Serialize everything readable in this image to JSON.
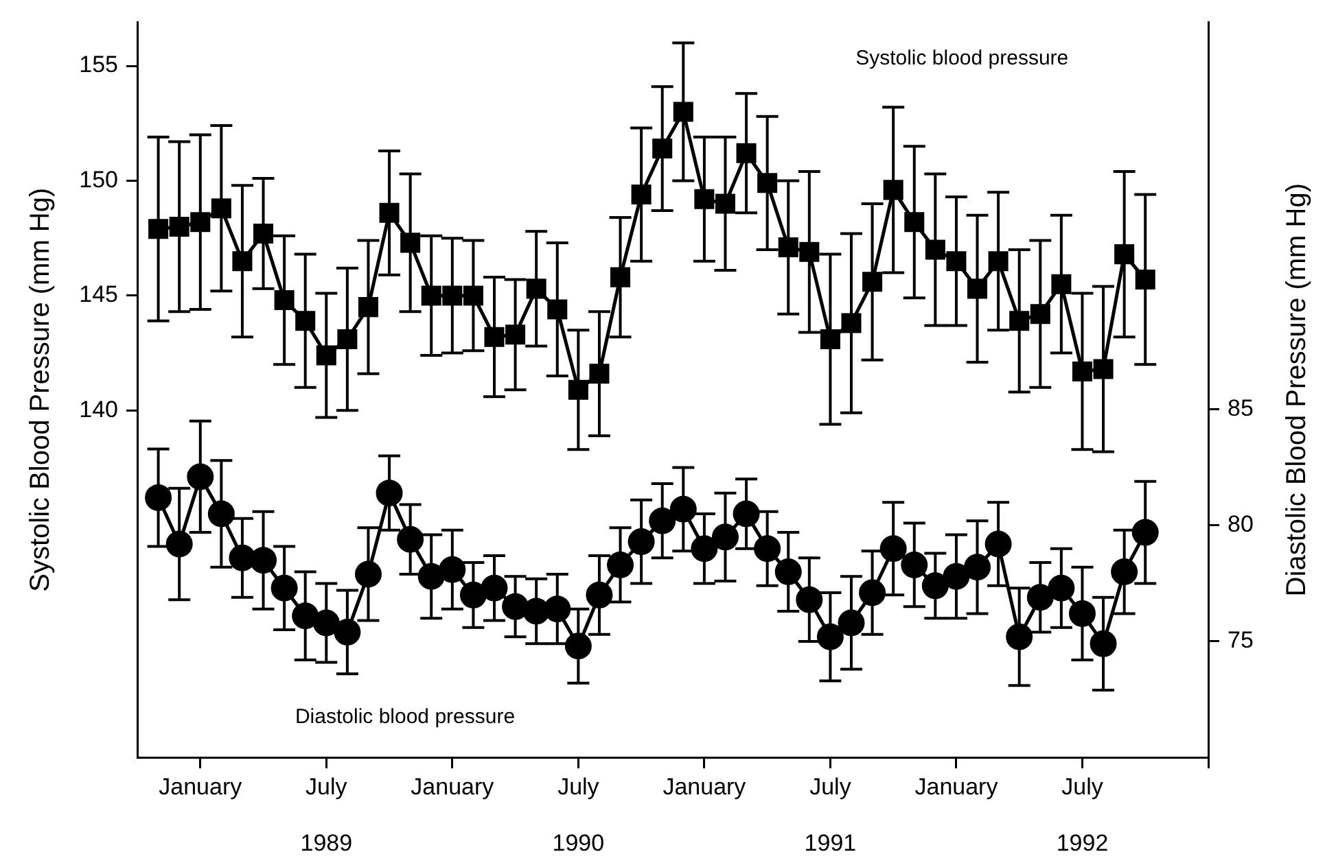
{
  "chart_data": {
    "type": "line",
    "ylabel": "Systolic Blood Pressure (mm Hg)",
    "y2label": "Diastolic Blood Pressure (mm Hg)",
    "x": [
      "1988-11",
      "1988-12",
      "1989-01",
      "1989-02",
      "1989-03",
      "1989-04",
      "1989-05",
      "1989-06",
      "1989-07",
      "1989-08",
      "1989-09",
      "1989-10",
      "1989-11",
      "1989-12",
      "1990-01",
      "1990-02",
      "1990-03",
      "1990-04",
      "1990-05",
      "1990-06",
      "1990-07",
      "1990-08",
      "1990-09",
      "1990-10",
      "1990-11",
      "1990-12",
      "1991-01",
      "1991-02",
      "1991-03",
      "1991-04",
      "1991-05",
      "1991-06",
      "1991-07",
      "1991-08",
      "1991-09",
      "1991-10",
      "1991-11",
      "1991-12",
      "1992-01",
      "1992-02",
      "1992-03",
      "1992-04",
      "1992-05",
      "1992-06",
      "1992-07",
      "1992-08",
      "1992-09",
      "1992-10"
    ],
    "series": [
      {
        "color": "#000000",
        "marker": "square",
        "values": [
          147.9,
          148.0,
          148.2,
          148.8,
          146.5,
          147.7,
          144.8,
          143.9,
          142.4,
          143.1,
          144.5,
          148.6,
          147.3,
          145.0,
          145.0,
          145.0,
          143.2,
          143.3,
          145.3,
          144.4,
          140.9,
          141.6,
          145.8,
          149.4,
          151.4,
          153.0,
          149.2,
          149.0,
          151.2,
          149.9,
          147.1,
          146.9,
          143.1,
          143.8,
          145.6,
          149.6,
          148.2,
          147.0,
          146.5,
          145.3,
          146.5,
          143.9,
          144.2,
          145.5,
          141.7,
          141.8,
          146.8,
          145.7
        ],
        "errors": [
          4.0,
          3.7,
          3.8,
          3.6,
          3.3,
          2.4,
          2.8,
          2.9,
          2.7,
          3.1,
          2.9,
          2.7,
          3.0,
          2.6,
          2.5,
          2.4,
          2.6,
          2.4,
          2.5,
          2.9,
          2.6,
          2.7,
          2.6,
          2.9,
          2.7,
          3.0,
          2.7,
          2.9,
          2.6,
          2.9,
          2.9,
          3.5,
          3.7,
          3.9,
          3.4,
          3.6,
          3.3,
          3.3,
          2.8,
          3.2,
          3.0,
          3.1,
          3.2,
          3.0,
          3.4,
          3.6,
          3.6,
          3.7
        ]
      },
      {
        "color": "#000000",
        "marker": "circle",
        "axis": "y2",
        "values": [
          81.2,
          79.2,
          82.1,
          80.5,
          78.6,
          78.5,
          77.3,
          76.1,
          75.8,
          75.4,
          77.9,
          81.4,
          79.4,
          77.8,
          78.1,
          77.0,
          77.3,
          76.5,
          76.3,
          76.4,
          74.8,
          77.0,
          78.3,
          79.3,
          80.2,
          80.7,
          79.0,
          79.5,
          80.5,
          79.0,
          78.0,
          76.8,
          75.2,
          75.8,
          77.1,
          79.0,
          78.3,
          77.4,
          77.8,
          78.2,
          79.2,
          75.2,
          76.9,
          77.3,
          76.2,
          74.9,
          78.0,
          79.7
        ],
        "errors": [
          2.1,
          2.4,
          2.4,
          2.3,
          1.7,
          2.1,
          1.8,
          1.9,
          1.7,
          1.8,
          2.0,
          1.6,
          1.5,
          1.8,
          1.7,
          1.4,
          1.4,
          1.3,
          1.4,
          1.5,
          1.6,
          1.7,
          1.6,
          1.8,
          1.6,
          1.8,
          1.5,
          1.9,
          1.5,
          1.6,
          1.7,
          1.8,
          1.9,
          2.0,
          1.8,
          2.0,
          1.8,
          1.4,
          1.8,
          2.0,
          1.8,
          2.1,
          1.5,
          1.7,
          2.0,
          2.0,
          1.8,
          2.2
        ]
      }
    ],
    "xlim": [
      "1988-10",
      "1993-01"
    ],
    "xticks": [
      {
        "value": "1989-01",
        "label": "January"
      },
      {
        "value": "1989-07",
        "label": "July"
      },
      {
        "value": "1990-01",
        "label": "January"
      },
      {
        "value": "1990-07",
        "label": "July"
      },
      {
        "value": "1991-01",
        "label": "January"
      },
      {
        "value": "1991-07",
        "label": "July"
      },
      {
        "value": "1992-01",
        "label": "January"
      },
      {
        "value": "1992-07",
        "label": "July"
      },
      {
        "value": "1993-01",
        "label": null
      }
    ],
    "x2lim": [
      "1988-10",
      "1993-01"
    ],
    "x2ticks": [
      {
        "value": "1989-07",
        "label": "1989"
      },
      {
        "value": "1990-07",
        "label": "1990"
      },
      {
        "value": "1991-07",
        "label": "1991"
      },
      {
        "value": "1992-07",
        "label": "1992"
      }
    ],
    "ylim": [
      124.9,
      156.9
    ],
    "yticks": [
      140,
      145,
      150,
      155
    ],
    "y2lim": [
      70,
      101.7
    ],
    "y2ticks": [
      75,
      80,
      85
    ],
    "annotations": [
      "Systolic blood pressure",
      "Diastolic blood pressure"
    ],
    "grid": false,
    "legend": false,
    "line_style": "solid"
  }
}
